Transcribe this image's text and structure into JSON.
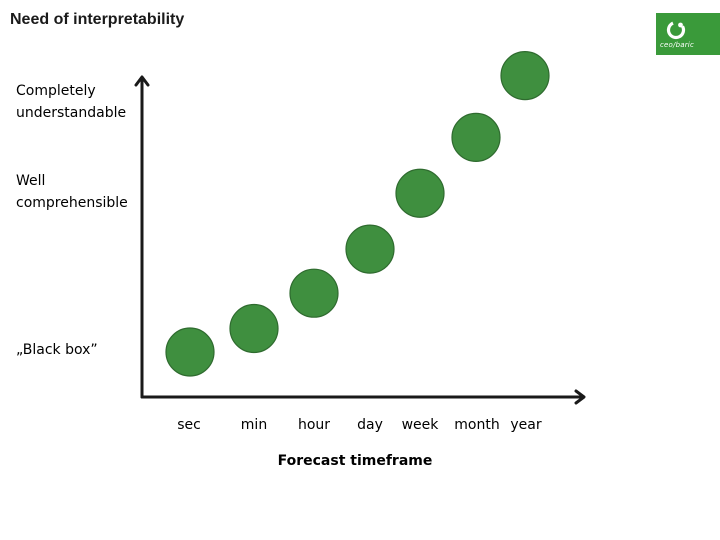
{
  "slide": {
    "title": "Need of interpretability",
    "brand_color": "#3a9a3a",
    "logo": {
      "text": "ceo/baric",
      "icon": "brand-logo-icon"
    }
  },
  "y_labels": [
    {
      "key": "top",
      "line1": "Completely",
      "line2": "understandable"
    },
    {
      "key": "mid",
      "line1": "Well",
      "line2": "comprehensible"
    },
    {
      "key": "bottom",
      "line1": "„Black box”",
      "line2": ""
    }
  ],
  "chart_data": {
    "type": "scatter",
    "x_categories": [
      "sec",
      "min",
      "hour",
      "day",
      "week",
      "month",
      "year"
    ],
    "xlabel": "Forecast timeframe",
    "y_scale_labels": [
      "„Black box”",
      "Well comprehensible",
      "Completely understandable"
    ],
    "y_range": [
      0,
      1
    ],
    "points": [
      {
        "x": "sec",
        "y": 0.0
      },
      {
        "x": "min",
        "y": 0.08
      },
      {
        "x": "hour",
        "y": 0.2
      },
      {
        "x": "day",
        "y": 0.35
      },
      {
        "x": "week",
        "y": 0.54
      },
      {
        "x": "month",
        "y": 0.73
      },
      {
        "x": "year",
        "y": 0.94
      }
    ],
    "marker_color": "#3f8f3f",
    "marker_edge_color": "#2f6b2f",
    "axis_color": "#1a1a1a"
  }
}
